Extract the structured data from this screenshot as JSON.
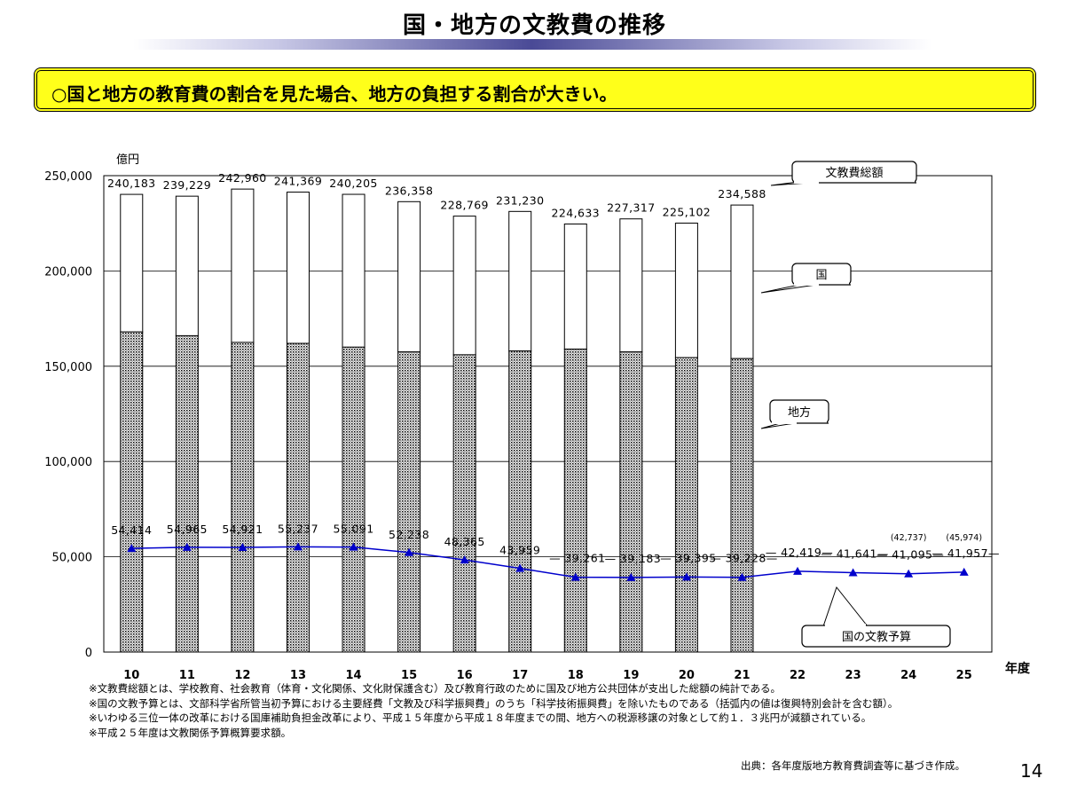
{
  "page": {
    "title": "国・地方の文教費の推移",
    "summary": "○国と地方の教育費の割合を見た場合、地方の負担する割合が大きい。",
    "notes": [
      "※文教費総額とは、学校教育、社会教育（体育・文化関係、文化財保護含む）及び教育行政のために国及び地方公共団体が支出した総額の純計である。",
      "※国の文教予算とは、文部科学省所管当初予算における主要経費「文教及び科学振興費」のうち「科学技術振興費」を除いたものである（括弧内の値は復興特別会計を含む額）。",
      "※いわゆる三位一体の改革における国庫補助負担金改革により、平成１５年度から平成１８年度までの間、地方への税源移譲の対象として約１．３兆円が減額されている。",
      "※平成２５年度は文教関係予算概算要求額。"
    ],
    "source": "出典：各年度版地方教育費調査等に基づき作成。",
    "page_number": "14"
  },
  "chart_data": {
    "type": "bar",
    "title": "",
    "ylabel": "億円",
    "xlabel": "年度",
    "ylim": [
      0,
      250000
    ],
    "yticks": [
      0,
      50000,
      100000,
      150000,
      200000,
      250000
    ],
    "ytick_labels": [
      "0",
      "50,000",
      "100,000",
      "150,000",
      "200,000",
      "250,000"
    ],
    "categories": [
      "10",
      "11",
      "12",
      "13",
      "14",
      "15",
      "16",
      "17",
      "18",
      "19",
      "20",
      "21",
      "22",
      "23",
      "24",
      "25"
    ],
    "series": [
      {
        "name": "文教費総額",
        "values": [
          240183,
          239229,
          242960,
          241369,
          240205,
          236358,
          228769,
          231230,
          224633,
          227317,
          225102,
          234588,
          null,
          null,
          null,
          null
        ],
        "labels": [
          "240,183",
          "239,229",
          "242,960",
          "241,369",
          "240,205",
          "236,358",
          "228,769",
          "231,230",
          "224,633",
          "227,317",
          "225,102",
          "234,588",
          "",
          "",
          "",
          ""
        ]
      },
      {
        "name": "地方",
        "values": [
          168000,
          166000,
          162500,
          162000,
          160000,
          157500,
          156000,
          158000,
          159000,
          157500,
          154500,
          154000,
          null,
          null,
          null,
          null
        ]
      },
      {
        "name": "国",
        "values": [
          72183,
          73229,
          80460,
          79369,
          80205,
          78858,
          72769,
          73230,
          65633,
          69817,
          70602,
          80588,
          null,
          null,
          null,
          null
        ]
      },
      {
        "name": "国の文教予算",
        "type": "line",
        "color": "#0000cc",
        "values": [
          54414,
          54965,
          54921,
          55237,
          55091,
          52238,
          48365,
          43959,
          39261,
          39183,
          39395,
          39228,
          42419,
          41641,
          41095,
          41957
        ],
        "labels": [
          "54,414",
          "54,965",
          "54,921",
          "55,237",
          "55,091",
          "52,238",
          "48,365",
          "43,959",
          "39,261",
          "39,183",
          "39,395",
          "39,228",
          "42,419",
          "41,641",
          "41,095",
          "41,957"
        ],
        "label_prefixes": [
          "",
          "",
          "",
          "",
          "",
          "",
          "",
          "",
          "— ",
          "— ",
          "— ",
          "— ",
          "— ",
          "— ",
          "— ",
          "— "
        ],
        "label_suffixes": [
          "",
          "",
          "",
          "",
          "",
          "",
          "",
          "",
          "",
          "",
          "",
          "—",
          "—",
          "—",
          "—",
          "—"
        ],
        "paren_labels": [
          "",
          "",
          "",
          "",
          "",
          "",
          "",
          "",
          "",
          "",
          "",
          "",
          "",
          "",
          "(42,737)",
          "(45,974)"
        ]
      }
    ],
    "callouts": [
      {
        "name": "total",
        "text": "文教費総額"
      },
      {
        "name": "national",
        "text": "国"
      },
      {
        "name": "local",
        "text": "地方"
      },
      {
        "name": "budget",
        "text": "国の文教予算"
      }
    ]
  }
}
